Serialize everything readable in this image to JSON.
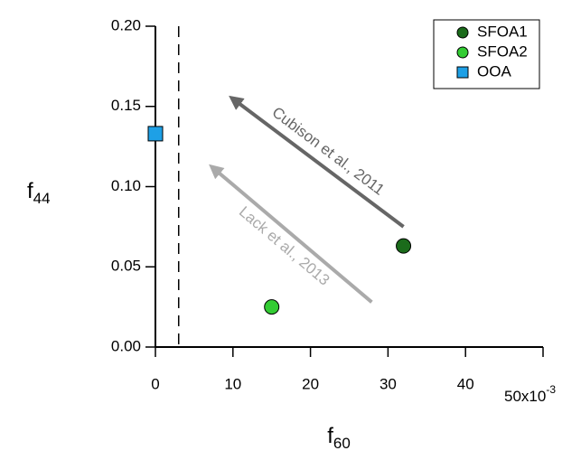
{
  "chart_data": {
    "type": "scatter",
    "x_label": "f",
    "x_label_sub": "60",
    "y_label": "f",
    "y_label_sub": "44",
    "xlim": [
      0,
      50
    ],
    "xticks": [
      0,
      10,
      20,
      30,
      40,
      {
        "value": 50,
        "label": "50x10"
      }
    ],
    "xtick_exponent": "-3",
    "ylim": [
      0,
      0.2
    ],
    "yticks": [
      {
        "value": 0,
        "label": "0.00"
      },
      {
        "value": 0.05,
        "label": "0.05"
      },
      {
        "value": 0.1,
        "label": "0.10"
      },
      {
        "value": 0.15,
        "label": "0.15"
      },
      {
        "value": 0.2,
        "label": "0.20"
      }
    ],
    "vline": 3,
    "series": [
      {
        "name": "SFOA1",
        "color": "#1b6b1b",
        "marker": "circle",
        "x": [
          32
        ],
        "values": [
          0.063
        ]
      },
      {
        "name": "SFOA2",
        "color": "#33cc33",
        "marker": "circle",
        "x": [
          15
        ],
        "values": [
          0.025
        ]
      },
      {
        "name": "OOA",
        "color": "#1ea0e6",
        "marker": "square",
        "x": [
          0
        ],
        "values": [
          0.133
        ]
      }
    ],
    "legend": "top-right",
    "annotations": [
      {
        "text": "Cubison et al., 2011",
        "color": "#666666",
        "position": "above",
        "x": [
          32,
          10.2
        ],
        "y": [
          0.075,
          0.154
        ]
      },
      {
        "text": "Lack et al., 2013",
        "color": "#aaaaaa",
        "position": "below",
        "x": [
          27.9,
          7.6
        ],
        "y": [
          0.028,
          0.111
        ]
      }
    ]
  }
}
